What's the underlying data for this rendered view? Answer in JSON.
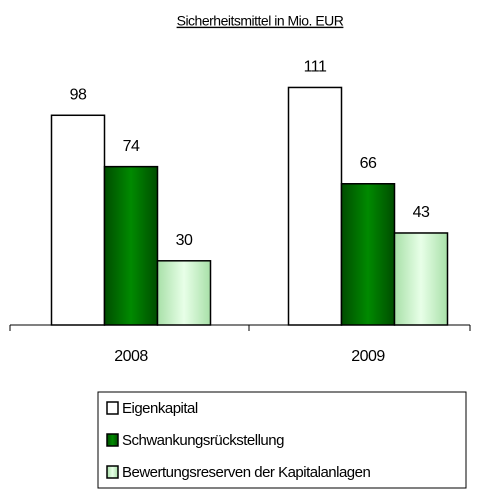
{
  "chart_data": {
    "type": "bar",
    "title": "Sicherheitsmittel in Mio. EUR",
    "categories": [
      "2008",
      "2009"
    ],
    "series": [
      {
        "name": "Eigenkapital",
        "color": "#ffffff",
        "values": [
          98,
          111
        ]
      },
      {
        "name": "Schwankungsrückstellung",
        "color": "#006600",
        "values": [
          74,
          66
        ]
      },
      {
        "name": "Bewertungsreserven der Kapitalanlagen",
        "color": "#ccf5cc",
        "values": [
          30,
          43
        ]
      }
    ]
  }
}
